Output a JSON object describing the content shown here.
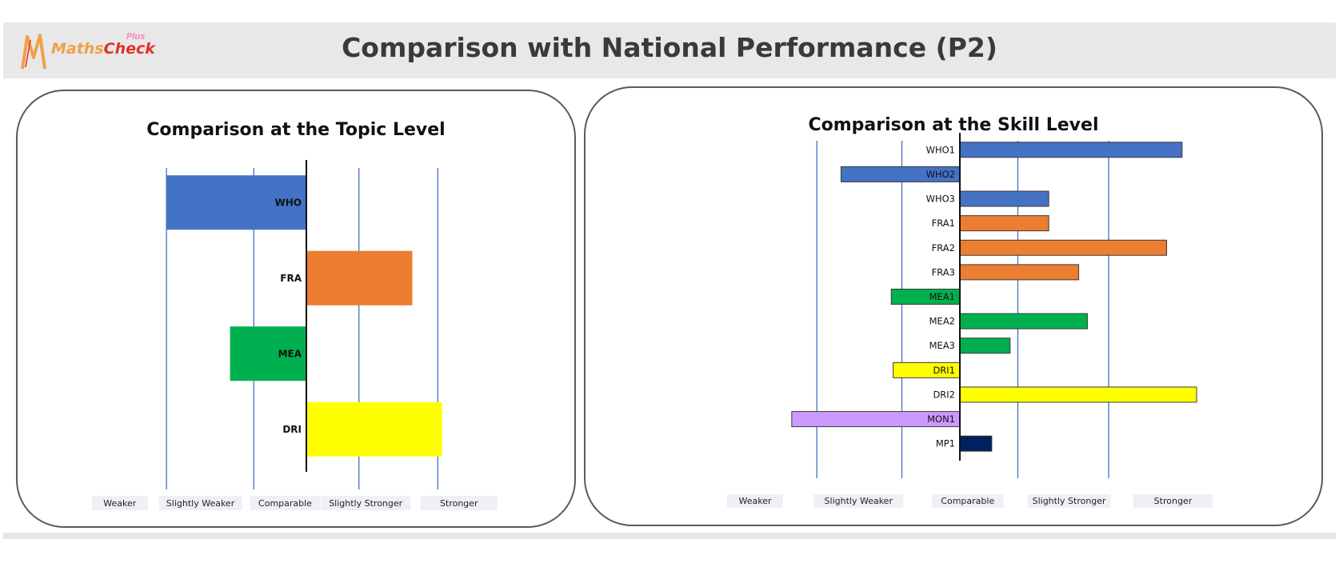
{
  "header": {
    "logo_main": "Maths",
    "logo_accent": "Check",
    "logo_plus": "Plus",
    "title": "Comparison with National Performance (P2)"
  },
  "colors": {
    "WHO": "#4472c4",
    "FRA": "#ed7d31",
    "MEA": "#00b050",
    "DRI": "#ffff00",
    "MON": "#cc99ff",
    "MP": "#002060",
    "gridline": "#4472c4",
    "category_box": "#eef0f5"
  },
  "categories": [
    "Weaker",
    "Slightly Weaker",
    "Comparable",
    "Slightly Stronger",
    "Stronger"
  ],
  "chart_data": [
    {
      "type": "bar",
      "orientation": "horizontal",
      "title": "Comparison at the Topic Level",
      "xlim": [
        -2.5,
        2.5
      ],
      "x_category_labels": [
        "Weaker",
        "Slightly Weaker",
        "Comparable",
        "Slightly Stronger",
        "Stronger"
      ],
      "bars": [
        {
          "label": "WHO",
          "value": -1.65,
          "color_key": "WHO"
        },
        {
          "label": "FRA",
          "value": 1.25,
          "color_key": "FRA"
        },
        {
          "label": "MEA",
          "value": -0.9,
          "color_key": "MEA"
        },
        {
          "label": "DRI",
          "value": 1.6,
          "color_key": "DRI"
        }
      ],
      "gridlines": [
        -1.65,
        -0.62,
        0.62,
        1.55
      ]
    },
    {
      "type": "bar",
      "orientation": "horizontal",
      "title": "Comparison at the Skill Level",
      "xlim": [
        -2.5,
        2.5
      ],
      "x_category_labels": [
        "Weaker",
        "Slightly Weaker",
        "Comparable",
        "Slightly Stronger",
        "Stronger"
      ],
      "bars": [
        {
          "label": "WHO1",
          "value": 2.3,
          "color_key": "WHO"
        },
        {
          "label": "WHO2",
          "value": -1.23,
          "color_key": "WHO"
        },
        {
          "label": "WHO3",
          "value": 0.92,
          "color_key": "WHO"
        },
        {
          "label": "FRA1",
          "value": 0.92,
          "color_key": "FRA"
        },
        {
          "label": "FRA2",
          "value": 2.14,
          "color_key": "FRA"
        },
        {
          "label": "FRA3",
          "value": 1.23,
          "color_key": "FRA"
        },
        {
          "label": "MEA1",
          "value": -0.71,
          "color_key": "MEA"
        },
        {
          "label": "MEA2",
          "value": 1.32,
          "color_key": "MEA"
        },
        {
          "label": "MEA3",
          "value": 0.52,
          "color_key": "MEA"
        },
        {
          "label": "DRI1",
          "value": -0.69,
          "color_key": "DRI"
        },
        {
          "label": "DRI2",
          "value": 2.45,
          "color_key": "DRI"
        },
        {
          "label": "MON1",
          "value": -1.74,
          "color_key": "MON"
        },
        {
          "label": "MP1",
          "value": 0.33,
          "color_key": "MP"
        }
      ],
      "gridlines": [
        -1.48,
        -0.6,
        0.6,
        1.54
      ]
    }
  ]
}
